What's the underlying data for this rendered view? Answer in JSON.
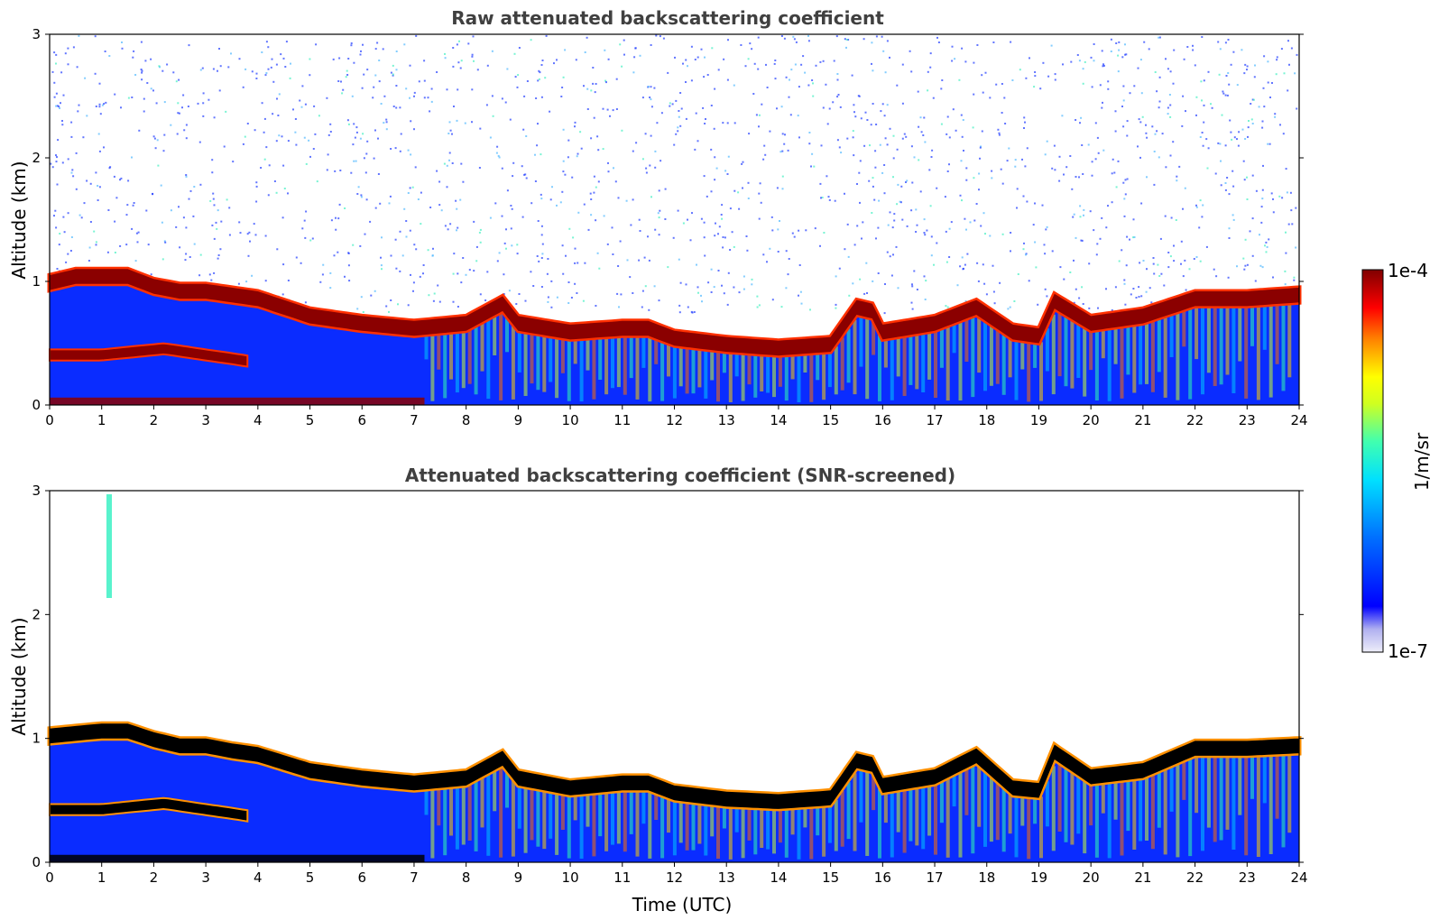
{
  "chart_data": [
    {
      "type": "heatmap",
      "id": "raw",
      "title": "Raw attenuated backscattering coefficient",
      "xlabel": "",
      "ylabel": "Altitude (km)",
      "xlim": [
        0,
        24
      ],
      "ylim": [
        0,
        3
      ],
      "x_ticks": [
        "0",
        "1",
        "2",
        "3",
        "4",
        "5",
        "6",
        "7",
        "8",
        "9",
        "10",
        "11",
        "12",
        "13",
        "14",
        "15",
        "16",
        "17",
        "18",
        "19",
        "20",
        "21",
        "22",
        "23",
        "24"
      ],
      "y_ticks": [
        "0",
        "1",
        "2",
        "3"
      ],
      "cloud_layer_top_km": {
        "time_utc": [
          0,
          0.5,
          1,
          1.5,
          2,
          2.5,
          3,
          3.5,
          4,
          5,
          6,
          7,
          8,
          8.7,
          9,
          10,
          11,
          11.5,
          12,
          13,
          14,
          15,
          15.5,
          15.8,
          16,
          17,
          17.8,
          18.5,
          19,
          19.3,
          20,
          21,
          22,
          23,
          24
        ],
        "altitude_km": [
          1.05,
          1.1,
          1.1,
          1.1,
          1.02,
          0.98,
          0.98,
          0.95,
          0.92,
          0.78,
          0.72,
          0.68,
          0.72,
          0.88,
          0.72,
          0.65,
          0.68,
          0.68,
          0.6,
          0.55,
          0.52,
          0.55,
          0.85,
          0.82,
          0.65,
          0.72,
          0.85,
          0.65,
          0.62,
          0.9,
          0.72,
          0.78,
          0.92,
          0.92,
          0.95
        ]
      },
      "lower_layer_km": {
        "time_utc": [
          0,
          1,
          2.2,
          3,
          3.5,
          3.8
        ],
        "altitude_km": [
          0.45,
          0.45,
          0.5,
          0.45,
          0.42,
          0.4
        ]
      }
    },
    {
      "type": "heatmap",
      "id": "snr",
      "title": "Attenuated backscattering coefficient (SNR-screened)",
      "xlabel": "Time (UTC)",
      "ylabel": "Altitude (km)",
      "xlim": [
        0,
        24
      ],
      "ylim": [
        0,
        3
      ],
      "x_ticks": [
        "0",
        "1",
        "2",
        "3",
        "4",
        "5",
        "6",
        "7",
        "8",
        "9",
        "10",
        "11",
        "12",
        "13",
        "14",
        "15",
        "16",
        "17",
        "18",
        "19",
        "20",
        "21",
        "22",
        "23",
        "24"
      ],
      "y_ticks": [
        "0",
        "1",
        "2",
        "3"
      ],
      "cloud_layer_top_km": {
        "time_utc": [
          0,
          0.5,
          1,
          1.5,
          2,
          2.5,
          3,
          3.5,
          4,
          5,
          6,
          7,
          8,
          8.7,
          9,
          10,
          11,
          11.5,
          12,
          13,
          14,
          15,
          15.5,
          15.8,
          16,
          17,
          17.8,
          18.5,
          19,
          19.3,
          20,
          21,
          22,
          23,
          24
        ],
        "altitude_km": [
          1.08,
          1.1,
          1.12,
          1.12,
          1.05,
          1.0,
          1.0,
          0.96,
          0.93,
          0.8,
          0.74,
          0.7,
          0.74,
          0.9,
          0.74,
          0.66,
          0.7,
          0.7,
          0.62,
          0.57,
          0.55,
          0.58,
          0.88,
          0.85,
          0.68,
          0.75,
          0.92,
          0.66,
          0.64,
          0.95,
          0.75,
          0.8,
          0.98,
          0.98,
          1.0
        ]
      },
      "lower_layer_km": {
        "time_utc": [
          0,
          1,
          2.2,
          3,
          3.5,
          3.8
        ],
        "altitude_km": [
          0.47,
          0.47,
          0.52,
          0.47,
          0.44,
          0.42
        ]
      }
    }
  ],
  "colorbar": {
    "label": "1/m/sr",
    "max_label": "1e-4",
    "min_label": "1e-7",
    "colors": [
      "#e8e8f8",
      "#0000ff",
      "#00b0ff",
      "#00ffb0",
      "#ffff00",
      "#ff8000",
      "#ff0000",
      "#800000"
    ]
  }
}
